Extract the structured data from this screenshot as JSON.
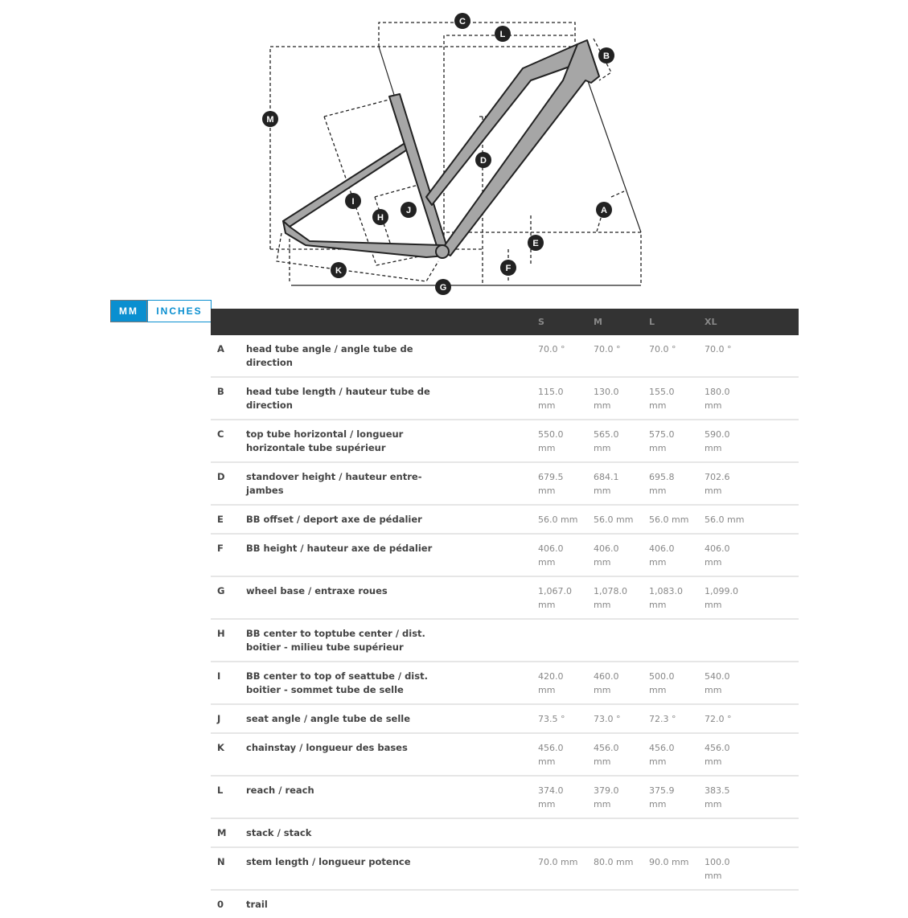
{
  "units": {
    "mm_label": "MM",
    "inches_label": "INCHES",
    "active": "MM",
    "accent": "#0a8fd0"
  },
  "diagram": {
    "markers": [
      "A",
      "B",
      "C",
      "D",
      "E",
      "F",
      "G",
      "H",
      "I",
      "J",
      "K",
      "L",
      "M"
    ],
    "frame_color": "#a6a6a6"
  },
  "table": {
    "header": {
      "letter": "",
      "label": "",
      "sizes": [
        "S",
        "M",
        "L",
        "XL"
      ]
    },
    "rows": [
      {
        "letter": "A",
        "label": "head tube angle / angle tube de direction",
        "values": [
          "70.0 °",
          "70.0 °",
          "70.0 °",
          "70.0 °"
        ]
      },
      {
        "letter": "B",
        "label": "head tube length / hauteur tube de direction",
        "values": [
          "115.0 mm",
          "130.0 mm",
          "155.0 mm",
          "180.0 mm"
        ]
      },
      {
        "letter": "C",
        "label": "top tube horizontal / longueur horizontale tube supérieur",
        "values": [
          "550.0 mm",
          "565.0 mm",
          "575.0 mm",
          "590.0 mm"
        ]
      },
      {
        "letter": "D",
        "label": "standover height / hauteur entre-jambes",
        "values": [
          "679.5 mm",
          "684.1 mm",
          "695.8 mm",
          "702.6 mm"
        ]
      },
      {
        "letter": "E",
        "label": "BB offset / deport axe de pédalier",
        "values": [
          "56.0 mm",
          "56.0 mm",
          "56.0 mm",
          "56.0 mm"
        ]
      },
      {
        "letter": "F",
        "label": "BB height / hauteur axe de pédalier",
        "values": [
          "406.0 mm",
          "406.0 mm",
          "406.0 mm",
          "406.0 mm"
        ]
      },
      {
        "letter": "G",
        "label": "wheel base / entraxe roues",
        "values": [
          "1,067.0 mm",
          "1,078.0 mm",
          "1,083.0 mm",
          "1,099.0 mm"
        ]
      },
      {
        "letter": "H",
        "label": "BB center to toptube center / dist. boitier - milieu tube supérieur",
        "values": [
          "",
          "",
          "",
          ""
        ]
      },
      {
        "letter": "I",
        "label": "BB center to top of seattube / dist. boitier - sommet tube de selle",
        "values": [
          "420.0 mm",
          "460.0 mm",
          "500.0 mm",
          "540.0 mm"
        ]
      },
      {
        "letter": "J",
        "label": "seat angle / angle tube de selle",
        "values": [
          "73.5 °",
          "73.0 °",
          "72.3 °",
          "72.0 °"
        ]
      },
      {
        "letter": "K",
        "label": "chainstay / longueur des bases",
        "values": [
          "456.0 mm",
          "456.0 mm",
          "456.0 mm",
          "456.0 mm"
        ]
      },
      {
        "letter": "L",
        "label": "reach / reach",
        "values": [
          "374.0 mm",
          "379.0 mm",
          "375.9 mm",
          "383.5 mm"
        ]
      },
      {
        "letter": "M",
        "label": "stack / stack",
        "values": [
          "",
          "",
          "",
          ""
        ]
      },
      {
        "letter": "N",
        "label": "stem length / longueur potence",
        "values": [
          "70.0 mm",
          "80.0 mm",
          "90.0 mm",
          "100.0 mm"
        ]
      },
      {
        "letter": "0",
        "label": "trail",
        "values": [
          "",
          "",
          "",
          ""
        ]
      }
    ]
  }
}
